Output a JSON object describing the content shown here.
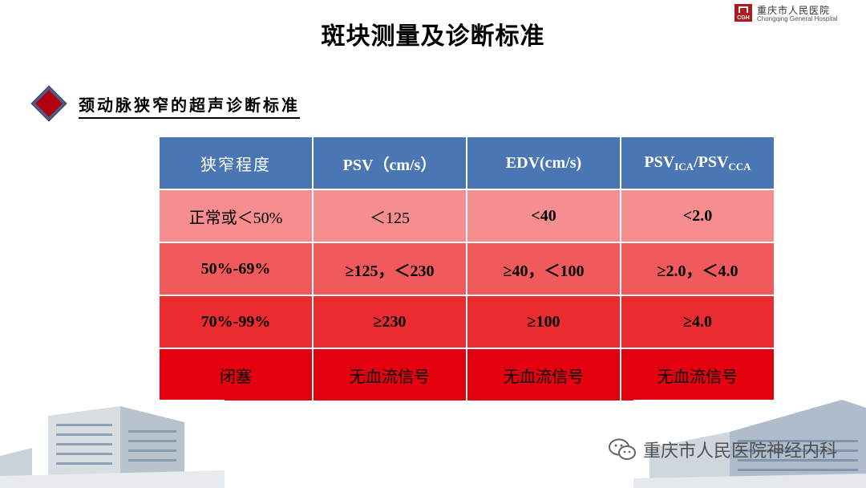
{
  "logo": {
    "mark_text": "CGH",
    "name_cn": "重庆市人民医院",
    "name_en": "Chongqing General Hospital"
  },
  "title": "斑块测量及诊断标准",
  "subtitle": "颈动脉狭窄的超声诊断标准",
  "table": {
    "headers": {
      "c1": "狭窄程度",
      "c2": "PSV（cm/s）",
      "c3": "EDV(cm/s)",
      "c4_base1": "PSV",
      "c4_sub1": "ICA",
      "c4_sep": "/PSV",
      "c4_sub2": "CCA"
    },
    "rows": [
      {
        "c1": "正常或＜50%",
        "c2": "＜125",
        "c3": "<40",
        "c4": "<2.0"
      },
      {
        "c1": "50%-69%",
        "c2": "≥125，＜230",
        "c3": "≥40，＜100",
        "c4": "≥2.0，＜4.0"
      },
      {
        "c1": "70%-99%",
        "c2": "≥230",
        "c3": "≥100",
        "c4": "≥4.0"
      },
      {
        "c1": "闭塞",
        "c2": "无血流信号",
        "c3": "无血流信号",
        "c4": "无血流信号"
      }
    ]
  },
  "watermark": {
    "text": "重庆市人民医院神经内科",
    "icon": "wechat-icon"
  },
  "colors": {
    "header_bg": "#4a76b3",
    "row1_bg": "#f68d8e",
    "row2_bg": "#f05a5c",
    "row3_bg": "#ea2b2f",
    "row4_bg": "#e3000f",
    "bullet": "#b00012"
  }
}
